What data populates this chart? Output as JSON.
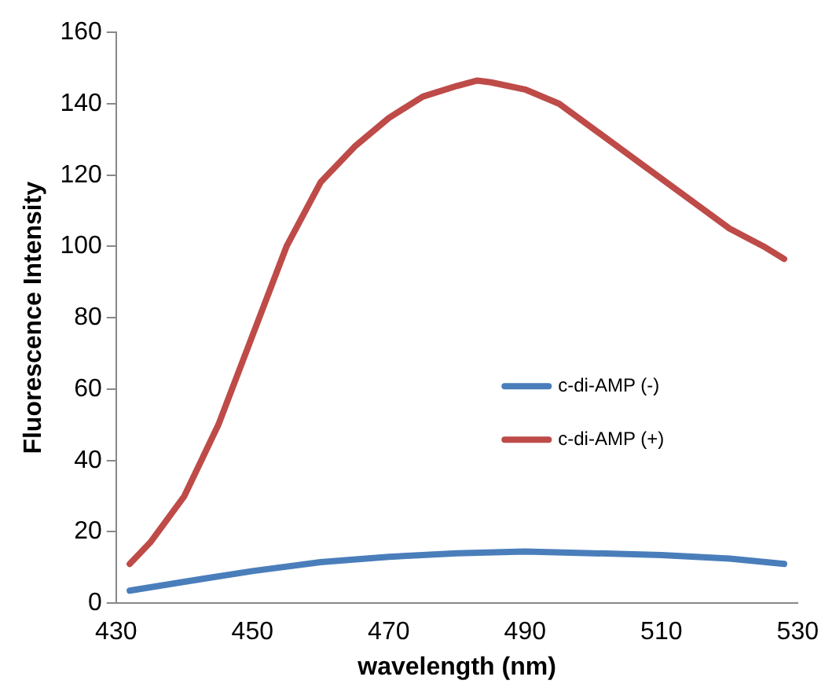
{
  "chart_data": {
    "type": "line",
    "xlabel": "wavelength (nm)",
    "ylabel": "Fluorescence Intensity",
    "xlim": [
      430,
      530
    ],
    "xticks": [
      430,
      450,
      470,
      490,
      510,
      530
    ],
    "ylim": [
      0,
      160
    ],
    "yticks": [
      0,
      20,
      40,
      60,
      80,
      100,
      120,
      140,
      160
    ],
    "grid": false,
    "legend": "right",
    "marker": "none",
    "line_style": "solid",
    "series": [
      {
        "name": "c-di-AMP (-)",
        "color": "#4a7ebb",
        "x": [
          432,
          440,
          450,
          460,
          470,
          480,
          490,
          500,
          510,
          520,
          528
        ],
        "values": [
          3.5,
          6,
          9,
          11.5,
          13,
          14,
          14.5,
          14,
          13.5,
          12.5,
          11
        ]
      },
      {
        "name": "c-di-AMP (+)",
        "color": "#be4b48",
        "x": [
          432,
          435,
          440,
          445,
          450,
          455,
          460,
          465,
          470,
          475,
          480,
          483,
          485,
          490,
          495,
          500,
          505,
          510,
          515,
          520,
          525,
          528
        ],
        "values": [
          11,
          17,
          30,
          50,
          75,
          100,
          118,
          128,
          136,
          142,
          145,
          146.5,
          146,
          144,
          140,
          133,
          126,
          119,
          112,
          105,
          100,
          96.5
        ]
      }
    ]
  }
}
